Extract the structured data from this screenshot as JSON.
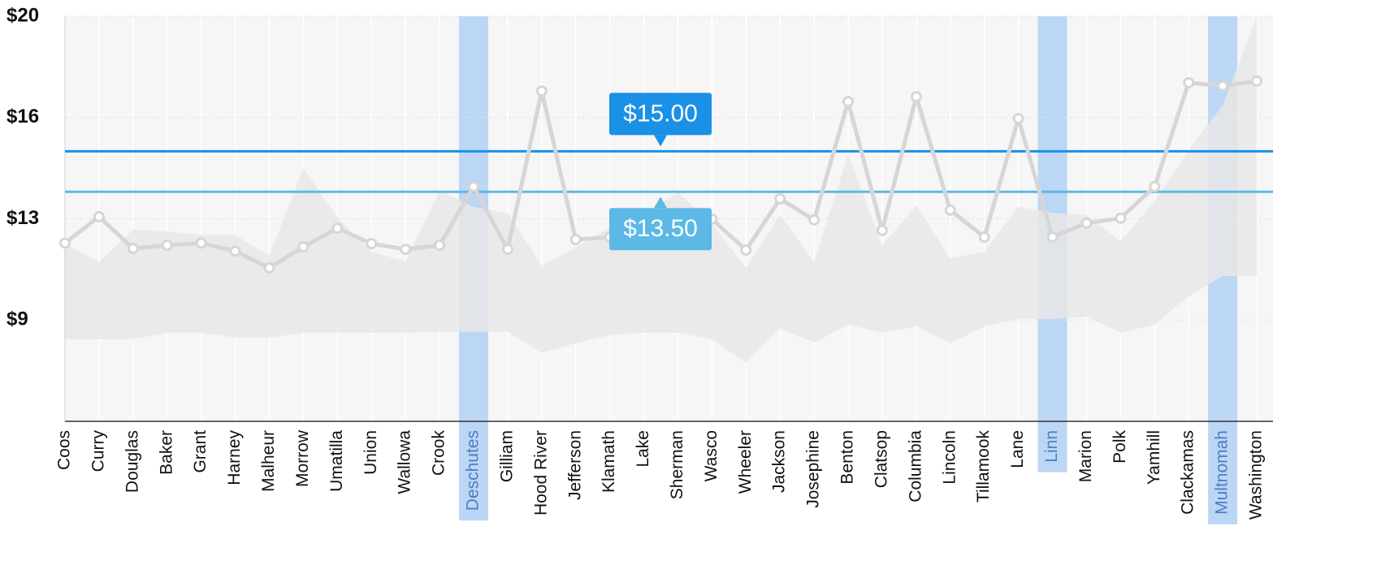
{
  "chart_data": {
    "type": "line",
    "categories": [
      "Coos",
      "Curry",
      "Douglas",
      "Baker",
      "Grant",
      "Harney",
      "Malheur",
      "Morrow",
      "Umatilla",
      "Union",
      "Wallowa",
      "Crook",
      "Deschutes",
      "Gilliam",
      "Hood River",
      "Jefferson",
      "Klamath",
      "Lake",
      "Sherman",
      "Wasco",
      "Wheeler",
      "Jackson",
      "Josephine",
      "Benton",
      "Clatsop",
      "Columbia",
      "Lincoln",
      "Tillamook",
      "Lane",
      "Linn",
      "Marion",
      "Polk",
      "Yamhill",
      "Clackamas",
      "Multnomah",
      "Washington"
    ],
    "series": [
      {
        "color": "#d6d6d6",
        "values": [
          11.6,
          12.58,
          11.4,
          11.52,
          11.6,
          11.3,
          10.68,
          11.46,
          12.15,
          11.58,
          11.37,
          11.52,
          13.69,
          11.37,
          17.23,
          11.73,
          11.82,
          11.9,
          12.2,
          12.49,
          11.34,
          13.24,
          12.46,
          16.84,
          12.07,
          17.02,
          12.82,
          11.82,
          16.21,
          11.82,
          12.34,
          12.52,
          13.69,
          17.54,
          17.42,
          17.6
        ]
      }
    ],
    "range": {
      "color": "#e8e8e8",
      "upper": [
        11.58,
        10.9,
        12.1,
        12.03,
        11.9,
        11.9,
        11.13,
        14.38,
        12.55,
        11.28,
        10.92,
        13.54,
        12.94,
        12.72,
        10.77,
        11.43,
        12.19,
        12.64,
        13.48,
        12.3,
        10.68,
        12.64,
        10.9,
        14.89,
        11.5,
        13.0,
        11.04,
        11.28,
        12.94,
        12.72,
        12.64,
        11.67,
        13.15,
        15.04,
        16.7,
        20
      ],
      "lower": [
        8.04,
        8.04,
        8.04,
        8.28,
        8.28,
        8.1,
        8.1,
        8.28,
        8.28,
        8.28,
        8.28,
        8.31,
        8.31,
        8.31,
        7.53,
        7.89,
        8.19,
        8.28,
        8.28,
        8.04,
        7.17,
        8.43,
        7.92,
        8.58,
        8.28,
        8.52,
        7.89,
        8.52,
        8.79,
        8.79,
        8.88,
        8.28,
        8.58,
        9.63,
        10.38,
        10.38
      ]
    },
    "reference_lines": [
      {
        "value": 15,
        "label": "$15.00",
        "color": "#1a90e6",
        "label_position": "above"
      },
      {
        "value": 13.5,
        "label": "$13.50",
        "color": "#5cb9e6",
        "label_position": "below"
      }
    ],
    "highlight_indices": [
      12,
      29,
      34
    ],
    "highlight_color": "#bcd6f5",
    "ylim": [
      5,
      20
    ],
    "yticks": [
      {
        "value": 20,
        "label": "$20"
      },
      {
        "value": 16.25,
        "label": "$16"
      },
      {
        "value": 12.5,
        "label": "$13"
      },
      {
        "value": 8.75,
        "label": "$9"
      }
    ],
    "grid": true
  }
}
